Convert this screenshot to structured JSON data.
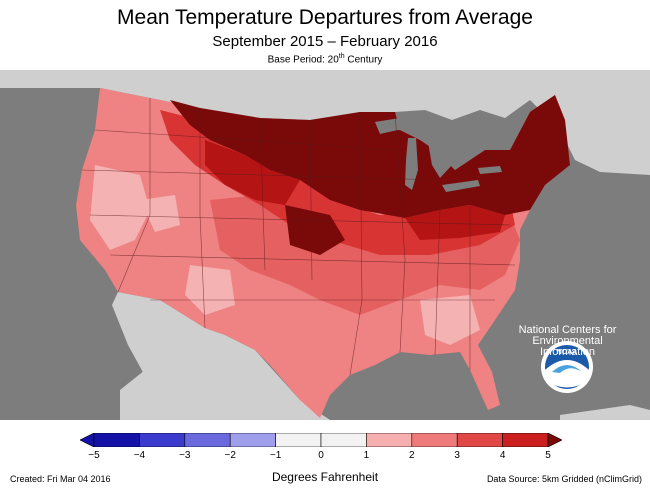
{
  "header": {
    "title": "Mean Temperature Departures from Average",
    "subtitle": "September 2015 – February 2016",
    "base_period_prefix": "Base Period: 20",
    "base_period_sup": "th",
    "base_period_suffix": " Century"
  },
  "logo": {
    "icon": "noaa-logo-icon",
    "name": "NOAA",
    "org_line1": "National Centers for",
    "org_line2": "Environmental",
    "org_line3": "Information"
  },
  "legend": {
    "title": "Degrees Fahrenheit",
    "ticks": [
      "−5",
      "−4",
      "−3",
      "−2",
      "−1",
      "0",
      "1",
      "2",
      "3",
      "4",
      "5"
    ],
    "bins": [
      {
        "color": "#1313a8"
      },
      {
        "color": "#3a3acd"
      },
      {
        "color": "#6a6ade"
      },
      {
        "color": "#9f9fee"
      },
      {
        "color": "#f2f2f2"
      },
      {
        "color": "#f2f2f2"
      },
      {
        "color": "#f7b0b0"
      },
      {
        "color": "#ef7a7a"
      },
      {
        "color": "#e04848"
      },
      {
        "color": "#cc1f1f"
      }
    ]
  },
  "colors": {
    "background": "#7d7d7d",
    "land_other": "#cfcfcf",
    "lakes": "#7d7d7d",
    "anomaly_1_2": "#f7b0b0",
    "anomaly_2_3": "#ef7a7a",
    "anomaly_3_4": "#e04848",
    "anomaly_4_5": "#cc1f1f",
    "anomaly_gt5": "#7a0a0a"
  },
  "footer": {
    "created": "Created: Fri Mar 04 2016",
    "source": "Data Source: 5km Gridded (nClimGrid)"
  }
}
